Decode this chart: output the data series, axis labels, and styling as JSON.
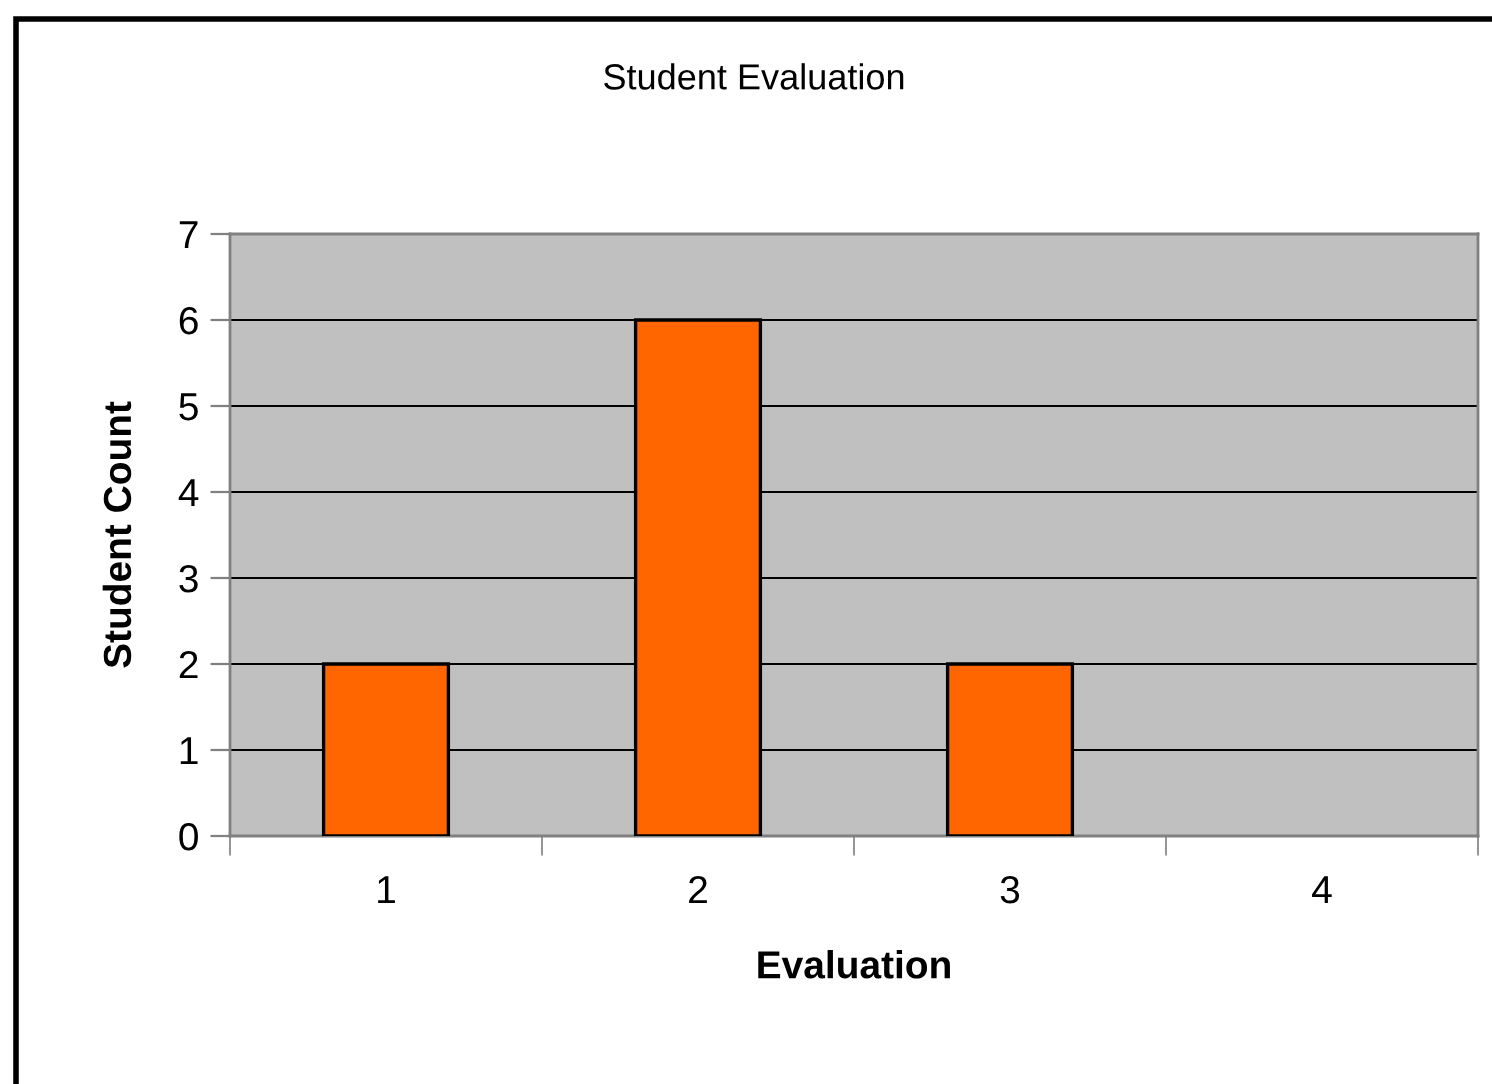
{
  "chart_data": {
    "type": "bar",
    "title": "Student Evaluation",
    "xlabel": "Evaluation",
    "ylabel": "Student Count",
    "categories": [
      "1",
      "2",
      "3",
      "4"
    ],
    "values": [
      2,
      6,
      2,
      0
    ],
    "color": "#ff6600",
    "ylim": [
      0,
      7
    ],
    "yticks": [
      0,
      1,
      2,
      3,
      4,
      5,
      6,
      7
    ],
    "grid": "y"
  }
}
